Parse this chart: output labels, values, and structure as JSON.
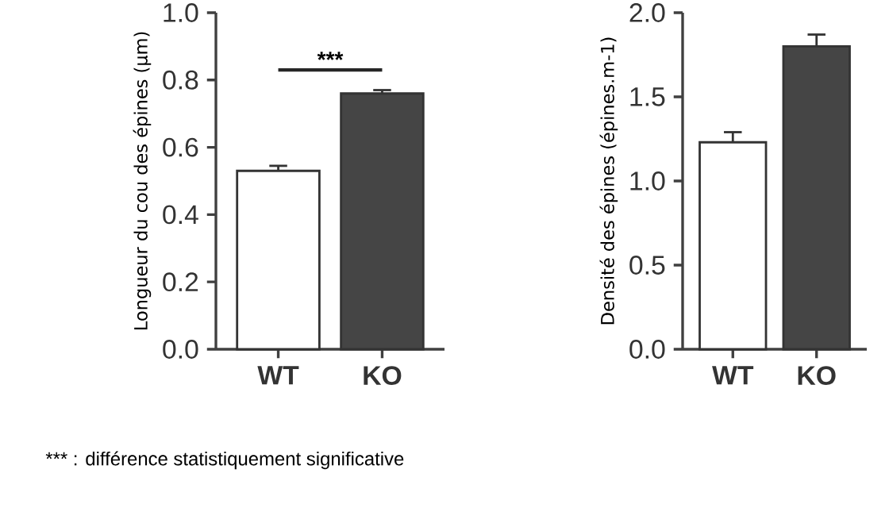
{
  "chart_data": [
    {
      "type": "bar",
      "ylabel": "Longueur du cou des épines (µm)",
      "categories": [
        "WT",
        "KO"
      ],
      "values": [
        0.53,
        0.76
      ],
      "errors": [
        0.015,
        0.01
      ],
      "colors": [
        "#ffffff",
        "#454545"
      ],
      "ylim": [
        0,
        1.0
      ],
      "yticks": [
        {
          "value": 0,
          "label": "0.0"
        },
        {
          "value": 0.2,
          "label": "0.2"
        },
        {
          "value": 0.4,
          "label": "0.4"
        },
        {
          "value": 0.6,
          "label": "0.6"
        },
        {
          "value": 0.8,
          "label": "0.8"
        },
        {
          "value": 1.0,
          "label": "1.0"
        }
      ],
      "annotations": [
        "***",
        "*** : différence statistiquement significative"
      ]
    },
    {
      "type": "bar",
      "ylabel": "Densité des épines (épines.m-1)",
      "categories": [
        "WT",
        "KO"
      ],
      "values": [
        1.23,
        1.8
      ],
      "errors": [
        0.06,
        0.07
      ],
      "colors": [
        "#ffffff",
        "#454545"
      ],
      "ylim": [
        0,
        2.0
      ],
      "yticks": [
        {
          "value": 0,
          "label": "0.0"
        },
        {
          "value": 0.5,
          "label": "0.5"
        },
        {
          "value": 1.0,
          "label": "1.0"
        },
        {
          "value": 1.5,
          "label": "1.5"
        },
        {
          "value": 2.0,
          "label": "2.0"
        }
      ]
    }
  ]
}
